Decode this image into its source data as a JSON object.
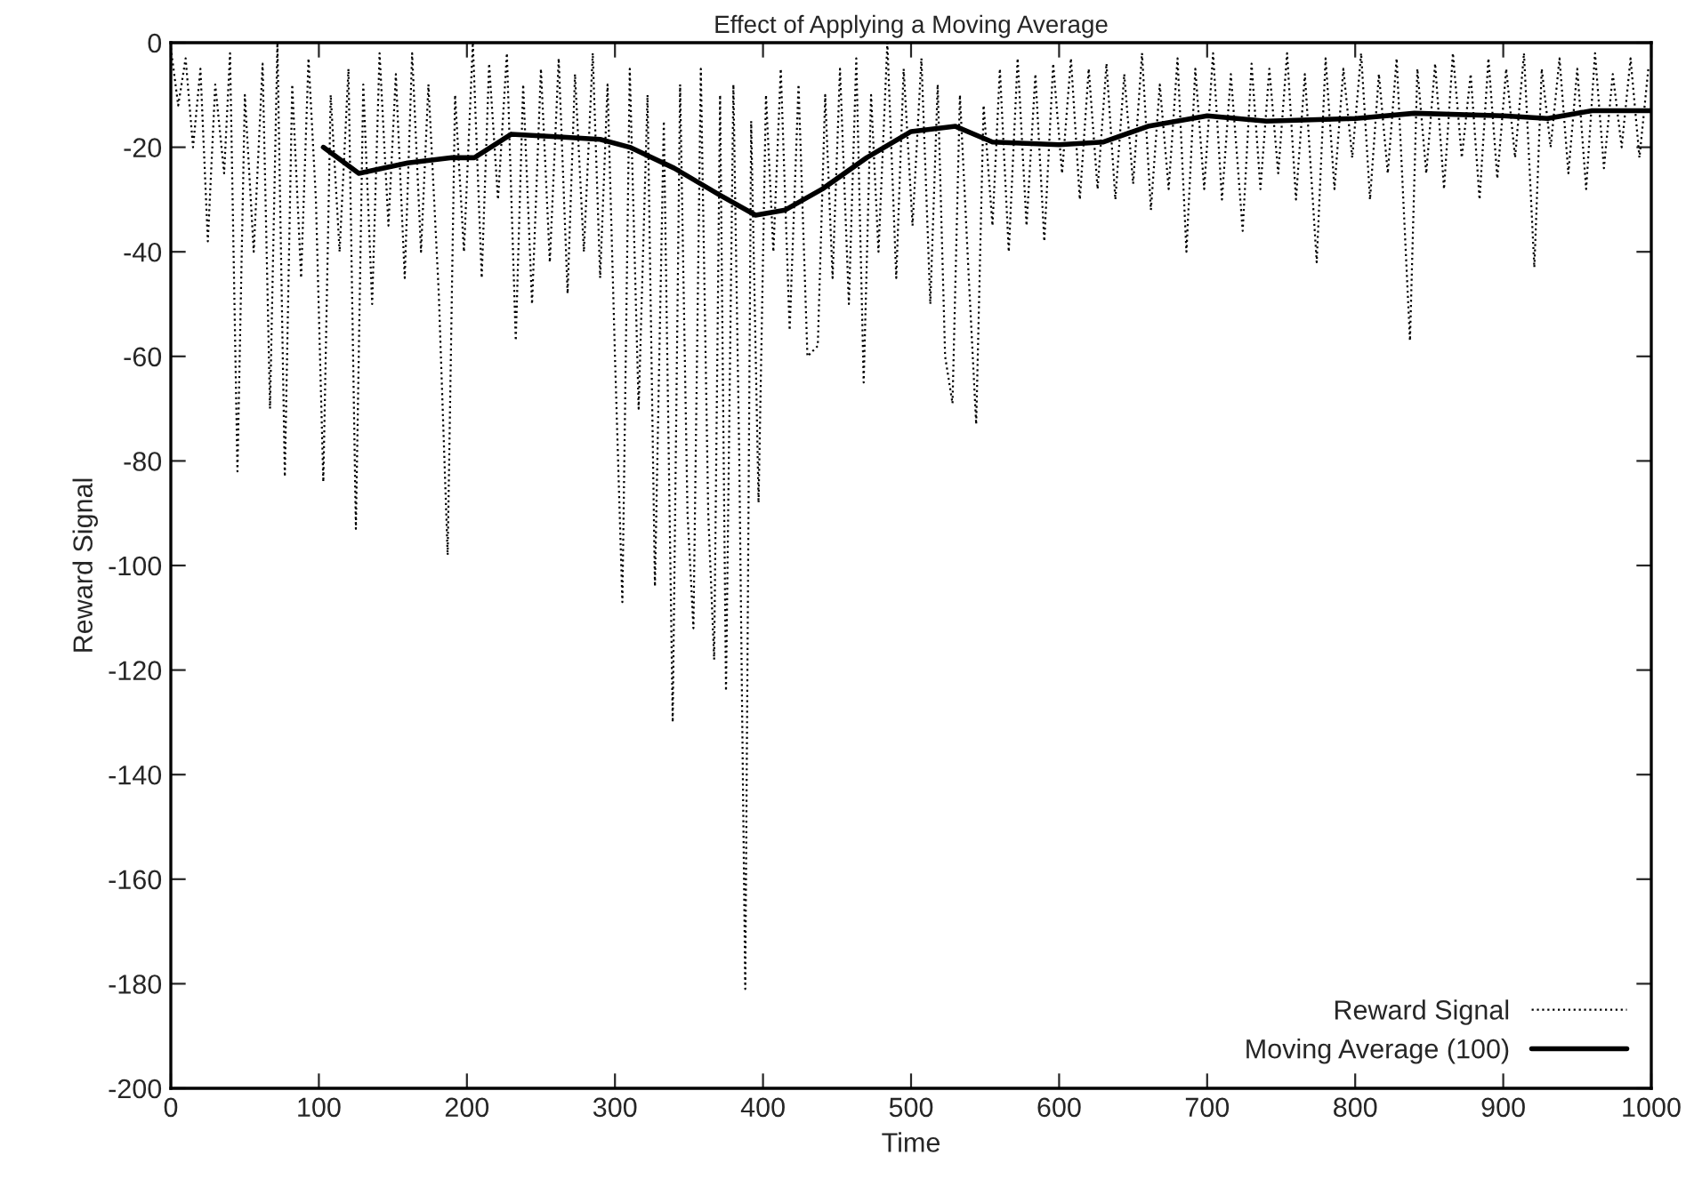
{
  "chart_data": {
    "type": "line",
    "title": "Effect of Applying a Moving Average",
    "xlabel": "Time",
    "ylabel": "Reward Signal",
    "xlim": [
      0,
      1000
    ],
    "xticks": [
      0,
      100,
      200,
      300,
      400,
      500,
      600,
      700,
      800,
      900,
      1000
    ],
    "ylim": [
      -200,
      0
    ],
    "yticks": [
      -200,
      -180,
      -160,
      -140,
      -120,
      -100,
      -80,
      -60,
      -40,
      -20,
      0
    ],
    "grid": false,
    "legend": "bottom right",
    "marker": "none",
    "series": [
      {
        "name": "Reward Signal",
        "color": "#000000",
        "line_style": "dotted",
        "x": [
          0,
          5,
          10,
          15,
          20,
          25,
          30,
          36,
          40,
          45,
          50,
          56,
          62,
          67,
          72,
          77,
          82,
          88,
          93,
          98,
          103,
          108,
          114,
          120,
          125,
          130,
          136,
          141,
          147,
          152,
          158,
          163,
          169,
          174,
          181,
          187,
          192,
          198,
          204,
          210,
          215,
          221,
          227,
          233,
          238,
          244,
          250,
          256,
          262,
          268,
          273,
          279,
          285,
          290,
          295,
          300,
          305,
          310,
          316,
          322,
          327,
          333,
          339,
          344,
          349,
          353,
          358,
          363,
          367,
          371,
          375,
          380,
          384,
          388,
          392,
          397,
          402,
          407,
          412,
          418,
          424,
          430,
          437,
          442,
          447,
          452,
          458,
          463,
          468,
          473,
          478,
          484,
          490,
          495,
          501,
          507,
          513,
          518,
          523,
          528,
          533,
          539,
          544,
          549,
          555,
          560,
          566,
          572,
          578,
          584,
          590,
          596,
          602,
          608,
          614,
          620,
          626,
          632,
          638,
          644,
          650,
          656,
          662,
          668,
          674,
          680,
          686,
          692,
          698,
          704,
          710,
          716,
          724,
          730,
          736,
          742,
          748,
          754,
          760,
          766,
          774,
          780,
          786,
          792,
          798,
          804,
          810,
          816,
          822,
          828,
          837,
          842,
          848,
          854,
          860,
          866,
          872,
          878,
          884,
          890,
          896,
          902,
          908,
          914,
          921,
          926,
          932,
          938,
          944,
          950,
          956,
          962,
          968,
          974,
          980,
          986,
          992,
          998
        ],
        "values": [
          -1,
          -12,
          -3,
          -20,
          -5,
          -38,
          -8,
          -25,
          -2,
          -82,
          -10,
          -40,
          -4,
          -70,
          0,
          -83,
          -8,
          -45,
          -3,
          -30,
          -84,
          -10,
          -40,
          -5,
          -93,
          -8,
          -50,
          -2,
          -35,
          -6,
          -45,
          -2,
          -40,
          -8,
          -48,
          -98,
          -10,
          -40,
          0,
          -45,
          -4,
          -30,
          -2,
          -57,
          -8,
          -50,
          -5,
          -42,
          -3,
          -48,
          -6,
          -40,
          -2,
          -45,
          -8,
          -60,
          -107,
          -5,
          -70,
          -10,
          -104,
          -15,
          -130,
          -8,
          -90,
          -112,
          -5,
          -90,
          -118,
          -10,
          -124,
          -8,
          -80,
          -181,
          -15,
          -88,
          -10,
          -40,
          -5,
          -55,
          -8,
          -60,
          -58,
          -10,
          -45,
          -5,
          -50,
          -3,
          -65,
          -10,
          -40,
          0,
          -45,
          -5,
          -35,
          -3,
          -50,
          -8,
          -60,
          -69,
          -10,
          -45,
          -73,
          -12,
          -35,
          -5,
          -40,
          -3,
          -35,
          -6,
          -38,
          -4,
          -25,
          -3,
          -30,
          -5,
          -28,
          -4,
          -30,
          -6,
          -27,
          -2,
          -32,
          -8,
          -28,
          -3,
          -40,
          -5,
          -28,
          -2,
          -30,
          -6,
          -36,
          -4,
          -28,
          -5,
          -25,
          -2,
          -30,
          -6,
          -42,
          -3,
          -28,
          -5,
          -22,
          -2,
          -30,
          -6,
          -25,
          -3,
          -57,
          -5,
          -25,
          -4,
          -28,
          -2,
          -22,
          -6,
          -30,
          -3,
          -26,
          -5,
          -22,
          -2,
          -43,
          -5,
          -20,
          -3,
          -25,
          -5,
          -28,
          -2,
          -24,
          -6,
          -20,
          -3,
          -22,
          -5
        ]
      },
      {
        "name": "Moving Average (100)",
        "color": "#000000",
        "line_style": "solid",
        "x": [
          103,
          127,
          160,
          190,
          205,
          230,
          260,
          290,
          310,
          340,
          370,
          395,
          415,
          440,
          470,
          500,
          530,
          555,
          600,
          630,
          660,
          700,
          740,
          800,
          840,
          900,
          930,
          960,
          1000
        ],
        "values": [
          -20,
          -25,
          -23,
          -22,
          -22,
          -17.5,
          -18,
          -18.5,
          -20,
          -24,
          -29,
          -33,
          -32,
          -28,
          -22,
          -17,
          -16,
          -19,
          -19.5,
          -19,
          -16,
          -14,
          -15,
          -14.5,
          -13.5,
          -14,
          -14.5,
          -13,
          -13
        ]
      }
    ]
  }
}
